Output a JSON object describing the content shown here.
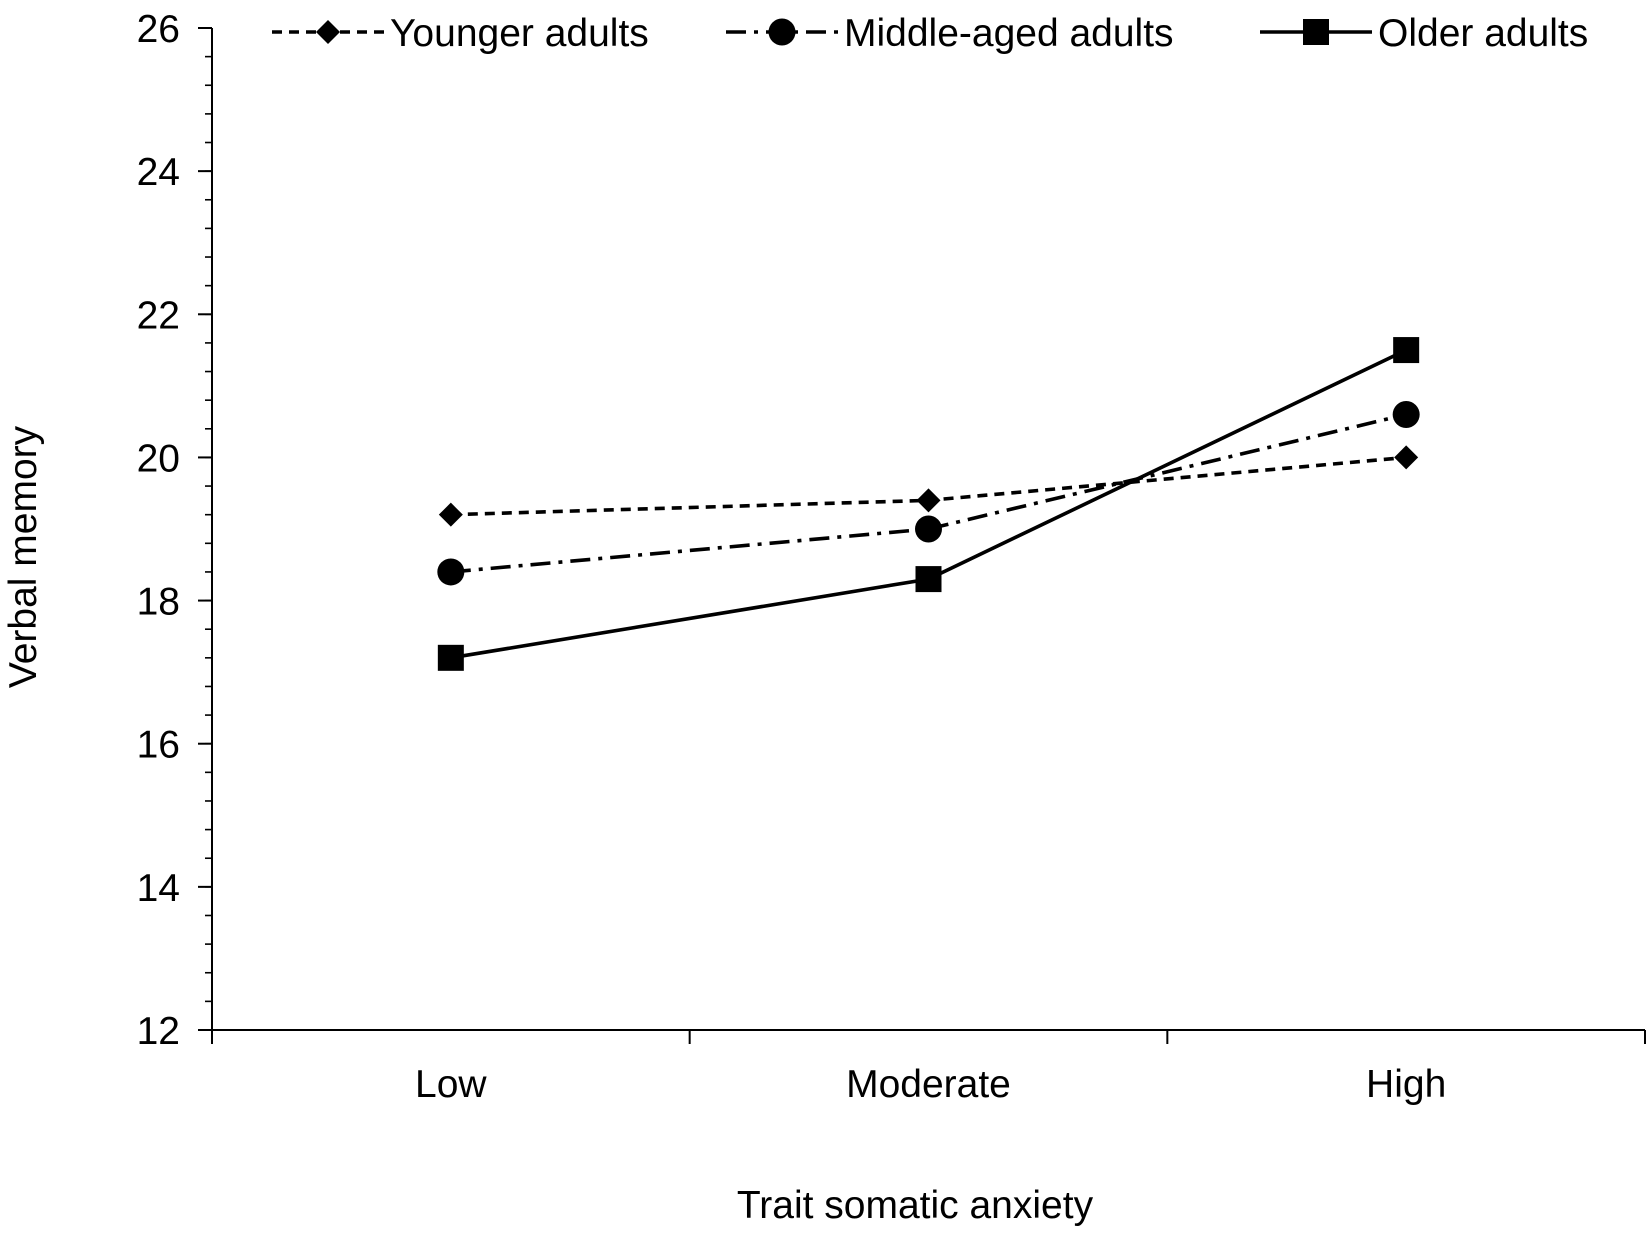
{
  "chart_data": {
    "type": "line",
    "title": "",
    "xlabel": "Trait somatic anxiety",
    "ylabel": "Verbal memory",
    "categories": [
      "Low",
      "Moderate",
      "High"
    ],
    "ylim": [
      12,
      26
    ],
    "y_ticks": [
      12,
      14,
      16,
      18,
      20,
      22,
      24,
      26
    ],
    "y_minor_step": 0.4,
    "grid": false,
    "legend_position": "top",
    "series": [
      {
        "name": "Younger adults",
        "values": [
          19.2,
          19.4,
          20.0
        ],
        "marker": "diamond",
        "line_style": "dashed",
        "color": "#000000"
      },
      {
        "name": "Middle-aged adults",
        "values": [
          18.4,
          19.0,
          20.6
        ],
        "marker": "circle",
        "line_style": "dash-dot",
        "color": "#000000"
      },
      {
        "name": "Older adults",
        "values": [
          17.2,
          18.3,
          21.5
        ],
        "marker": "square",
        "line_style": "solid",
        "color": "#000000"
      }
    ]
  }
}
